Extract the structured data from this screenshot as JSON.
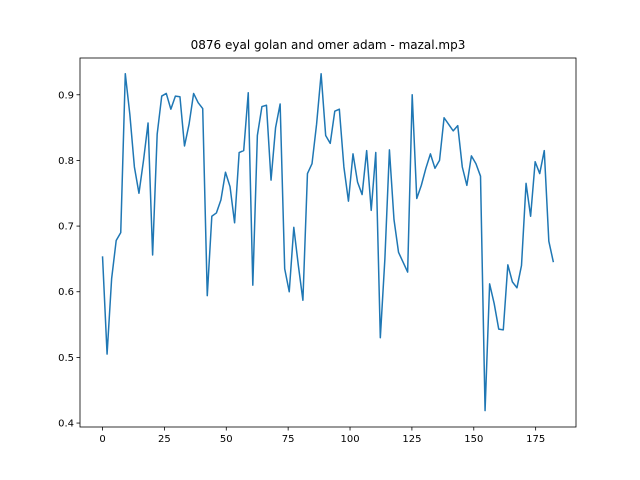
{
  "chart_data": {
    "type": "line",
    "title": "0876 eyal golan and omer adam - mazal.mp3",
    "x": [
      0,
      1.84,
      3.68,
      5.52,
      7.36,
      9.2,
      11.04,
      12.88,
      14.72,
      16.56,
      18.4,
      20.24,
      22.08,
      23.92,
      25.76,
      27.6,
      29.44,
      31.28,
      33.12,
      34.96,
      36.8,
      38.64,
      40.48,
      42.32,
      44.16,
      46,
      47.84,
      49.68,
      51.52,
      53.36,
      55.2,
      57.04,
      58.88,
      60.72,
      62.56,
      64.4,
      66.24,
      68.08,
      69.92,
      71.76,
      73.6,
      75.44,
      77.28,
      79.12,
      80.96,
      82.8,
      84.64,
      86.48,
      88.32,
      90.16,
      92,
      93.84,
      95.68,
      97.52,
      99.36,
      101.2,
      103.04,
      104.88,
      106.72,
      108.56,
      110.4,
      112.24,
      114.08,
      115.92,
      117.76,
      119.6,
      121.44,
      123.28,
      125.12,
      126.96,
      128.8,
      130.64,
      132.48,
      134.32,
      136.16,
      138,
      139.84,
      141.68,
      143.52,
      145.36,
      147.2,
      149.04,
      150.88,
      152.72,
      154.56,
      156.4,
      158.24,
      160.08,
      161.92,
      163.76,
      165.6,
      167.44,
      169.28,
      171.12,
      172.96,
      174.8,
      176.64,
      178.48,
      180.32,
      182.16
    ],
    "values": [
      0.654,
      0.505,
      0.62,
      0.678,
      0.69,
      0.932,
      0.87,
      0.79,
      0.75,
      0.8,
      0.857,
      0.656,
      0.84,
      0.898,
      0.902,
      0.878,
      0.898,
      0.897,
      0.822,
      0.855,
      0.902,
      0.888,
      0.879,
      0.594,
      0.715,
      0.72,
      0.74,
      0.782,
      0.76,
      0.705,
      0.812,
      0.815,
      0.903,
      0.61,
      0.838,
      0.882,
      0.884,
      0.77,
      0.85,
      0.886,
      0.635,
      0.6,
      0.698,
      0.64,
      0.587,
      0.78,
      0.795,
      0.855,
      0.932,
      0.838,
      0.826,
      0.875,
      0.878,
      0.79,
      0.738,
      0.81,
      0.767,
      0.748,
      0.815,
      0.724,
      0.812,
      0.53,
      0.65,
      0.816,
      0.71,
      0.66,
      0.645,
      0.63,
      0.9,
      0.742,
      0.762,
      0.788,
      0.81,
      0.788,
      0.8,
      0.865,
      0.855,
      0.845,
      0.853,
      0.79,
      0.762,
      0.807,
      0.795,
      0.776,
      0.419,
      0.612,
      0.582,
      0.543,
      0.542,
      0.641,
      0.615,
      0.606,
      0.64,
      0.765,
      0.715,
      0.798,
      0.78,
      0.815,
      0.677,
      0.645
    ],
    "color": "#1f77b4",
    "xlim": [
      -9.1,
      191.3
    ],
    "xticks": [
      0,
      25,
      50,
      75,
      100,
      125,
      150,
      175
    ],
    "ylim": [
      0.394,
      0.956
    ],
    "yticks": [
      0.4,
      0.5,
      0.6,
      0.7,
      0.8,
      0.9
    ]
  }
}
